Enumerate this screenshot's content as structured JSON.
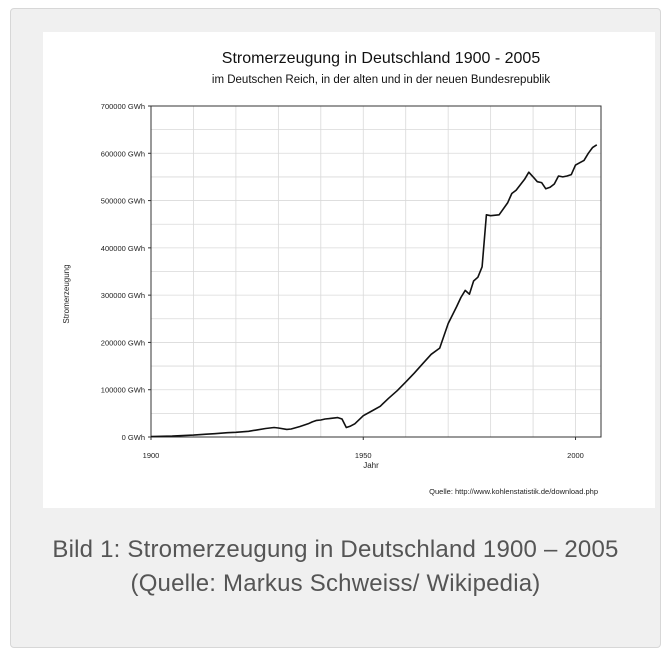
{
  "caption": "Bild 1: Stromerzeugung in Deutschland 1900 – 2005 (Quelle: Markus Schweiss/ Wikipedia)",
  "colors": {
    "frame_bg": "#f0f0f0",
    "line": "#111111",
    "grid": "#d9d9d9",
    "caption": "#555555"
  },
  "chart_data": {
    "type": "line",
    "title": "Stromerzeugung in Deutschland 1900 - 2005",
    "subtitle": "im Deutschen Reich, in der alten und in der neuen Bundesrepublik",
    "xlabel": "Jahr",
    "ylabel": "Stromerzeugung",
    "source": "Quelle: http://www.kohlenstatistik.de/download.php",
    "xlim": [
      1900,
      2006
    ],
    "ylim": [
      0,
      700000
    ],
    "grid": true,
    "x_ticks": [
      {
        "value": 1900,
        "label": "1900"
      },
      {
        "value": 1950,
        "label": "1950"
      },
      {
        "value": 2000,
        "label": "2000"
      }
    ],
    "y_ticks": [
      {
        "value": 0,
        "label": "0 GWh"
      },
      {
        "value": 100000,
        "label": "100000 GWh"
      },
      {
        "value": 200000,
        "label": "200000 GWh"
      },
      {
        "value": 300000,
        "label": "300000 GWh"
      },
      {
        "value": 400000,
        "label": "400000 GWh"
      },
      {
        "value": 500000,
        "label": "500000 GWh"
      },
      {
        "value": 600000,
        "label": "600000 GWh"
      },
      {
        "value": 700000,
        "label": "700000 GWh"
      }
    ],
    "series": [
      {
        "x": [
          1900,
          1905,
          1910,
          1913,
          1915,
          1918,
          1920,
          1923,
          1925,
          1927,
          1929,
          1930,
          1932,
          1933,
          1935,
          1937,
          1938,
          1939,
          1940,
          1941,
          1942,
          1943,
          1944,
          1945,
          1946,
          1947,
          1948,
          1950,
          1952,
          1954,
          1956,
          1958,
          1960,
          1962,
          1964,
          1966,
          1968,
          1970,
          1972,
          1973,
          1974,
          1975,
          1976,
          1977,
          1978,
          1979,
          1980,
          1982,
          1984,
          1985,
          1986,
          1988,
          1989,
          1990,
          1991,
          1992,
          1993,
          1994,
          1995,
          1996,
          1997,
          1998,
          1999,
          2000,
          2001,
          2002,
          2003,
          2004,
          2005
        ],
        "y": [
          1000,
          2000,
          4000,
          6000,
          7000,
          9000,
          10000,
          12000,
          15000,
          18000,
          20000,
          19000,
          16000,
          17000,
          22000,
          28000,
          32000,
          35000,
          36000,
          38000,
          39000,
          40000,
          41000,
          38000,
          20000,
          23000,
          28000,
          45000,
          55000,
          65000,
          82000,
          98000,
          116000,
          135000,
          155000,
          175000,
          188000,
          240000,
          276000,
          295000,
          310000,
          302000,
          330000,
          338000,
          360000,
          470000,
          468000,
          470000,
          495000,
          515000,
          522000,
          545000,
          560000,
          550000,
          540000,
          538000,
          525000,
          528000,
          535000,
          552000,
          550000,
          552000,
          555000,
          575000,
          580000,
          585000,
          600000,
          612000,
          618000
        ]
      }
    ]
  }
}
